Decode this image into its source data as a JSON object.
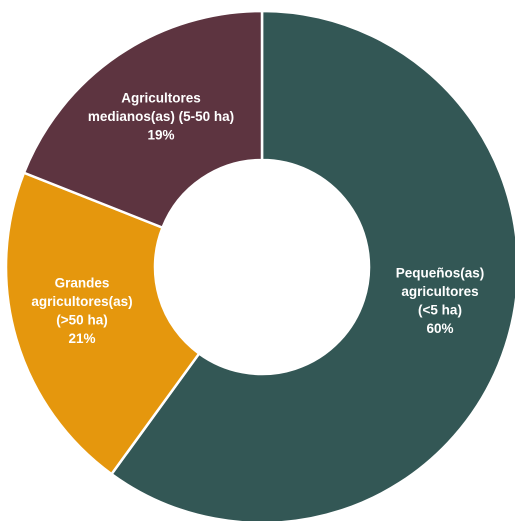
{
  "chart_data": {
    "type": "pie",
    "donut": true,
    "title": "",
    "slices": [
      {
        "label_lines": [
          "Pequeños(as)",
          "agricultores",
          "(<5 ha)"
        ],
        "value_text": "60%",
        "value": 60,
        "color": "#335755"
      },
      {
        "label_lines": [
          "Grandes",
          "agricultores(as)",
          "(>50 ha)"
        ],
        "value_text": "21%",
        "value": 21,
        "color": "#e5970d"
      },
      {
        "label_lines": [
          "Agricultores",
          "medianos(as) (5-50 ha)"
        ],
        "value_text": "19%",
        "value": 19,
        "color": "#5d3440"
      }
    ],
    "legend": "none"
  }
}
